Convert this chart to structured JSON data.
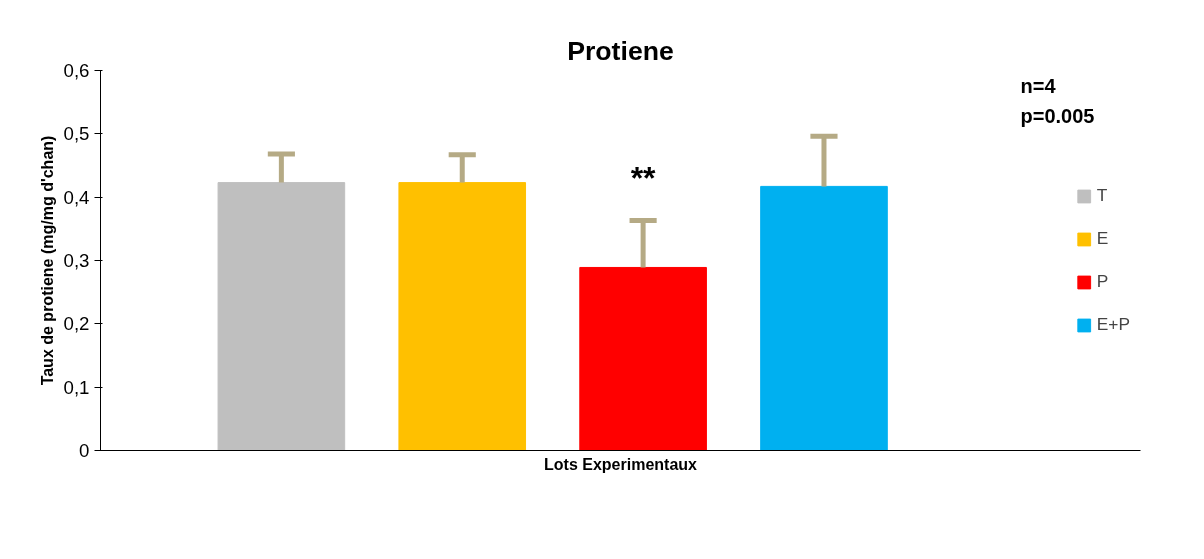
{
  "chart_data": {
    "type": "bar",
    "title": "Protiene",
    "xlabel": "Lots Experimentaux",
    "ylabel": "Taux de protiene (mg/mg d'chan)",
    "categories": [
      null
    ],
    "ylim": [
      0,
      0.6
    ],
    "yticks": [
      {
        "value": 0,
        "label": "0"
      },
      {
        "value": 0.1,
        "label": "0,1"
      },
      {
        "value": 0.2,
        "label": "0,2"
      },
      {
        "value": 0.3,
        "label": "0,3"
      },
      {
        "value": 0.4,
        "label": "0,4"
      },
      {
        "value": 0.5,
        "label": "0,5"
      },
      {
        "value": 0.6,
        "label": "0,6"
      }
    ],
    "grid": false,
    "legend": "right",
    "series": [
      {
        "name": "T",
        "color": "#bfbfbf",
        "values": [
          0.423
        ],
        "errors": [
          [
            0.423,
            0.468
          ]
        ]
      },
      {
        "name": "E",
        "color": "#ffc000",
        "values": [
          0.423
        ],
        "errors": [
          [
            0.423,
            0.467
          ]
        ]
      },
      {
        "name": "P",
        "color": "#ff0000",
        "values": [
          0.289
        ],
        "errors": [
          [
            0.289,
            0.363
          ]
        ]
      },
      {
        "name": "E+P",
        "color": "#00b0f0",
        "values": [
          0.417
        ],
        "errors": [
          [
            0.417,
            0.496
          ]
        ]
      }
    ],
    "annotations": [
      "**",
      "n=4",
      "p=0.005"
    ]
  }
}
